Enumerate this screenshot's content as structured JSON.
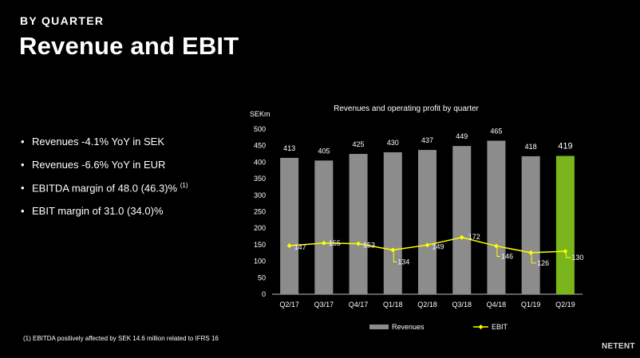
{
  "header": {
    "kicker": "BY QUARTER",
    "title": "Revenue and EBIT"
  },
  "bullets": [
    {
      "text": "Revenues -4.1% YoY in SEK"
    },
    {
      "text": "Revenues -6.6% YoY in EUR"
    },
    {
      "text": "EBITDA margin of 48.0 (46.3)%",
      "sup": "(1)"
    },
    {
      "text": "EBIT margin of 31.0 (34.0)%"
    }
  ],
  "footnote": "(1) EBITDA positively affected by SEK 14.6 million related to IFRS 16",
  "logo": "NETENT",
  "colors": {
    "bar": "#8c8c8c",
    "bar_highlight": "#7ab51d",
    "line": "#ffff00"
  },
  "chart_data": {
    "type": "bar",
    "title": "Revenues and operating profit by quarter",
    "ylabel": "SEKm",
    "xlabel": "",
    "ylim": [
      0,
      500
    ],
    "yticks": [
      0,
      50,
      100,
      150,
      200,
      250,
      300,
      350,
      400,
      450,
      500
    ],
    "categories": [
      "Q2/17",
      "Q3/17",
      "Q4/17",
      "Q1/18",
      "Q2/18",
      "Q3/18",
      "Q4/18",
      "Q1/19",
      "Q2/19"
    ],
    "series": [
      {
        "name": "Revenues",
        "kind": "bar",
        "values": [
          413,
          405,
          425,
          430,
          437,
          449,
          465,
          418,
          419
        ],
        "highlight_index": 8
      },
      {
        "name": "EBIT",
        "kind": "line",
        "values": [
          147,
          155,
          153,
          134,
          149,
          172,
          146,
          126,
          130
        ]
      }
    ],
    "legend": "bottom"
  }
}
